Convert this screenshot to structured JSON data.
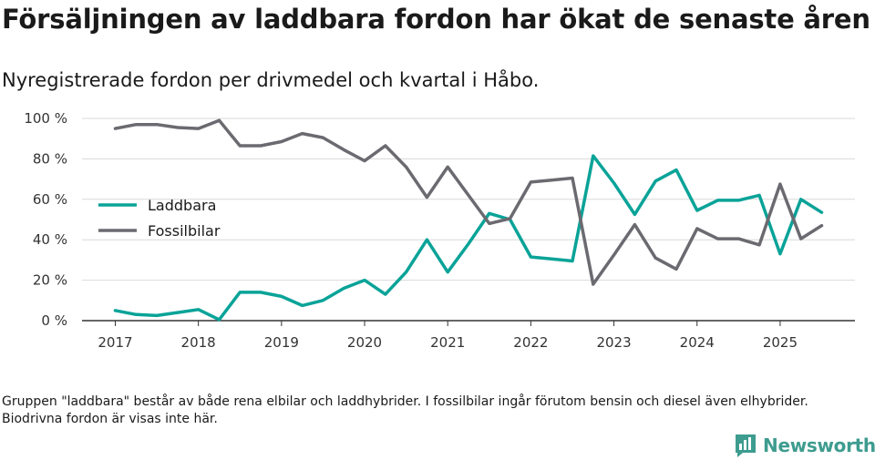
{
  "title": "Försäljningen av laddbara fordon har ökat de senaste åren",
  "subtitle": "Nyregistrerade fordon per drivmedel och kvartal i Håbo.",
  "footnote": "Gruppen \"laddbara\" består av både rena elbilar och laddhybrider. I fossilbilar ingår förutom bensin och diesel även elhybrider. Biodrivna fordon är visas inte här.",
  "brand": {
    "name": "Newsworthy",
    "color": "#3d9c8f"
  },
  "chart_data": {
    "type": "line",
    "title": "Försäljningen av laddbara fordon har ökat de senaste åren",
    "subtitle": "Nyregistrerade fordon per drivmedel och kvartal i Håbo.",
    "xlabel": "",
    "ylabel": "",
    "x": [
      2017.0,
      2017.25,
      2017.5,
      2017.75,
      2018.0,
      2018.25,
      2018.5,
      2018.75,
      2019.0,
      2019.25,
      2019.5,
      2019.75,
      2020.0,
      2020.25,
      2020.5,
      2020.75,
      2021.0,
      2021.25,
      2021.5,
      2021.75,
      2022.0,
      2022.25,
      2022.5,
      2022.75,
      2023.0,
      2023.25,
      2023.5,
      2023.75,
      2024.0,
      2024.25,
      2024.5,
      2024.75,
      2025.0,
      2025.25,
      2025.5
    ],
    "series": [
      {
        "name": "Laddbara",
        "color": "#0aa398",
        "values": [
          5,
          3,
          2.5,
          4,
          5.5,
          0.5,
          14,
          14,
          12,
          7.5,
          10,
          16,
          20,
          13,
          24,
          40,
          24,
          38,
          53,
          50,
          31.5,
          30.5,
          29.5,
          81.5,
          68,
          52.5,
          69,
          74.5,
          54.5,
          59.5,
          59.5,
          62,
          33,
          60,
          53.5
        ]
      },
      {
        "name": "Fossilbilar",
        "color": "#6b6a70",
        "values": [
          95,
          97,
          97,
          95.5,
          95,
          99,
          86.5,
          86.5,
          88.5,
          92.5,
          90.5,
          84.5,
          79,
          86.5,
          76,
          61,
          76,
          62,
          48,
          50.5,
          68.5,
          69.5,
          70.5,
          18,
          32.5,
          47.5,
          31,
          25.5,
          45.5,
          40.5,
          40.5,
          37.5,
          67.5,
          40.5,
          47
        ]
      }
    ],
    "x_ticks": [
      "2017",
      "2018",
      "2019",
      "2020",
      "2021",
      "2022",
      "2023",
      "2024",
      "2025"
    ],
    "y_ticks": [
      "0 %",
      "20 %",
      "40 %",
      "60 %",
      "80 %",
      "100 %"
    ],
    "y_tick_values": [
      0,
      20,
      40,
      60,
      80,
      100
    ],
    "x_tick_values": [
      2017,
      2018,
      2019,
      2020,
      2021,
      2022,
      2023,
      2024,
      2025
    ],
    "ylim": [
      0,
      100
    ],
    "xlim": [
      2016.6,
      2025.9
    ],
    "grid": true,
    "legend": "middle-left"
  }
}
